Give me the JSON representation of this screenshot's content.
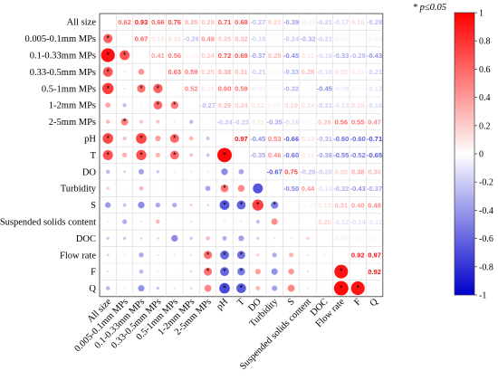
{
  "chart_data": {
    "type": "heatmap",
    "subtype": "correlation-matrix",
    "lower_triangle_style": "circles sized and colored by coefficient",
    "upper_triangle_style": "numeric coefficients colored by sign and magnitude",
    "significance_note": "* p≤0.05",
    "variables": [
      "All size",
      "0.005-0.1mm MPs",
      "0.1-0.33mm MPs",
      "0.33-0.5mm MPs",
      "0.5-1mm MPs",
      "1-2mm MPs",
      "2-5mm MPs",
      "pH",
      "T",
      "DO",
      "Turbidity",
      "S",
      "Suspended solids content",
      "DOC",
      "Flow rate",
      "F",
      "Q"
    ],
    "matrix": [
      [
        1,
        0.62,
        0.93,
        0.66,
        0.76,
        0.35,
        0.28,
        0.71,
        0.68,
        -0.27,
        0.21,
        -0.39,
        -0.07,
        -0.21,
        -0.17,
        0.16,
        -0.28
      ],
      [
        0.62,
        1,
        0.67,
        0.12,
        0.15,
        -0.26,
        0.49,
        0.25,
        0.32,
        -0.18,
        0.02,
        -0.24,
        -0.32,
        -0.21,
        -0.05,
        0.02,
        -0.06
      ],
      [
        0.93,
        0.67,
        1,
        0.41,
        0.56,
        0.05,
        0.24,
        0.72,
        0.69,
        -0.37,
        0.29,
        -0.45,
        0.11,
        -0.16,
        -0.33,
        -0.28,
        -0.43
      ],
      [
        0.66,
        0.12,
        0.41,
        1,
        0.63,
        0.59,
        0.25,
        0.38,
        0.31,
        -0.21,
        0.05,
        -0.33,
        0.28,
        -0.16,
        0.15,
        0.11,
        -0.21
      ],
      [
        0.76,
        0.15,
        0.56,
        0.63,
        1,
        0.52,
        0.11,
        0.6,
        0.59,
        -0.07,
        0.04,
        -0.32,
        0.02,
        -0.45,
        -0.09,
        0.05,
        -0.12
      ],
      [
        0.35,
        -0.26,
        0.05,
        0.59,
        0.52,
        1,
        -0.27,
        0.29,
        0.24,
        0.12,
        0.06,
        0.19,
        0.14,
        -0.21,
        -0.13,
        0.16,
        -0.16
      ],
      [
        0.28,
        0.49,
        0.24,
        0.25,
        0.11,
        -0.27,
        1,
        -0.24,
        -0.23,
        0.11,
        -0.35,
        -0.16,
        0.03,
        0.28,
        0.56,
        0.55,
        0.47
      ],
      [
        0.71,
        0.25,
        0.72,
        0.38,
        0.6,
        0.29,
        -0.24,
        1,
        0.97,
        -0.45,
        0.53,
        -0.66,
        0.13,
        -0.31,
        -0.6,
        -0.6,
        -0.71
      ],
      [
        0.68,
        0.32,
        0.69,
        0.31,
        0.59,
        0.24,
        -0.23,
        0.97,
        1,
        -0.35,
        0.46,
        -0.6,
        0.11,
        -0.38,
        -0.55,
        -0.52,
        -0.65
      ],
      [
        -0.27,
        -0.18,
        -0.37,
        -0.21,
        -0.07,
        0.12,
        0.11,
        -0.45,
        -0.35,
        1,
        -0.67,
        0.75,
        -0.26,
        -0.2,
        0.2,
        0.38,
        0.3
      ],
      [
        0.21,
        0.02,
        0.29,
        0.05,
        0.04,
        0.06,
        -0.35,
        0.53,
        0.46,
        -0.67,
        1,
        -0.5,
        0.44,
        -0.13,
        -0.32,
        -0.43,
        -0.37
      ],
      [
        -0.39,
        -0.24,
        -0.45,
        -0.33,
        -0.32,
        0.19,
        -0.16,
        -0.66,
        -0.6,
        0.75,
        -0.5,
        1,
        -0.03,
        0.13,
        0.31,
        0.4,
        0.48
      ],
      [
        -0.07,
        -0.32,
        0.11,
        0.28,
        0.02,
        0.14,
        0.03,
        0.13,
        0.11,
        -0.26,
        0.44,
        -0.03,
        1,
        0.2,
        -0.12,
        -0.14,
        -0.11
      ],
      [
        -0.21,
        -0.21,
        -0.16,
        -0.16,
        -0.45,
        -0.21,
        0.28,
        -0.31,
        -0.38,
        -0.2,
        -0.13,
        0.13,
        0.2,
        1,
        -0.07,
        0.04,
        0.03
      ],
      [
        -0.17,
        -0.05,
        -0.33,
        0.15,
        -0.09,
        -0.13,
        0.56,
        -0.6,
        -0.55,
        0.2,
        -0.32,
        0.31,
        -0.12,
        -0.07,
        1,
        0.92,
        0.97
      ],
      [
        0.16,
        0.02,
        -0.28,
        0.11,
        0.05,
        0.16,
        0.55,
        -0.6,
        -0.52,
        0.38,
        -0.43,
        0.4,
        -0.14,
        0.04,
        0.92,
        1,
        0.92
      ],
      [
        -0.28,
        -0.06,
        -0.43,
        -0.21,
        -0.12,
        -0.16,
        0.47,
        -0.71,
        -0.65,
        0.3,
        -0.37,
        0.48,
        -0.11,
        0.03,
        0.97,
        0.92,
        1
      ]
    ],
    "significant_pairs": [
      [
        "0.005-0.1mm MPs",
        "All size"
      ],
      [
        "0.1-0.33mm MPs",
        "All size"
      ],
      [
        "0.1-0.33mm MPs",
        "0.005-0.1mm MPs"
      ],
      [
        "0.33-0.5mm MPs",
        "All size"
      ],
      [
        "0.5-1mm MPs",
        "All size"
      ],
      [
        "0.5-1mm MPs",
        "0.1-0.33mm MPs"
      ],
      [
        "0.5-1mm MPs",
        "0.33-0.5mm MPs"
      ],
      [
        "1-2mm MPs",
        "0.33-0.5mm MPs"
      ],
      [
        "1-2mm MPs",
        "0.5-1mm MPs"
      ],
      [
        "2-5mm MPs",
        "0.005-0.1mm MPs"
      ],
      [
        "pH",
        "All size"
      ],
      [
        "pH",
        "0.1-0.33mm MPs"
      ],
      [
        "pH",
        "0.5-1mm MPs"
      ],
      [
        "T",
        "All size"
      ],
      [
        "T",
        "0.1-0.33mm MPs"
      ],
      [
        "T",
        "0.5-1mm MPs"
      ],
      [
        "T",
        "pH"
      ],
      [
        "Turbidity",
        "pH"
      ],
      [
        "S",
        "pH"
      ],
      [
        "S",
        "T"
      ],
      [
        "S",
        "DO"
      ],
      [
        "S",
        "Turbidity"
      ],
      [
        "Flow rate",
        "2-5mm MPs"
      ],
      [
        "Flow rate",
        "pH"
      ],
      [
        "Flow rate",
        "T"
      ],
      [
        "F",
        "2-5mm MPs"
      ],
      [
        "F",
        "pH"
      ],
      [
        "F",
        "T"
      ],
      [
        "F",
        "Flow rate"
      ],
      [
        "Q",
        "pH"
      ],
      [
        "Q",
        "T"
      ],
      [
        "Q",
        "Flow rate"
      ],
      [
        "Q",
        "F"
      ]
    ],
    "colorbar": {
      "min": -1,
      "max": 1,
      "ticks": [
        1,
        0.8,
        0.6,
        0.4,
        0.2,
        0,
        -0.2,
        -0.4,
        -0.6,
        -0.8,
        -1
      ],
      "tick_labels": [
        "1",
        "0.8",
        "0.6",
        "0.4",
        "0.2",
        "0",
        "-0.2",
        "-0.4",
        "-0.6",
        "-0.8",
        "-1"
      ],
      "colors": {
        "positive": "#ff0000",
        "zero": "#ffffff",
        "negative": "#0000cc"
      }
    }
  }
}
